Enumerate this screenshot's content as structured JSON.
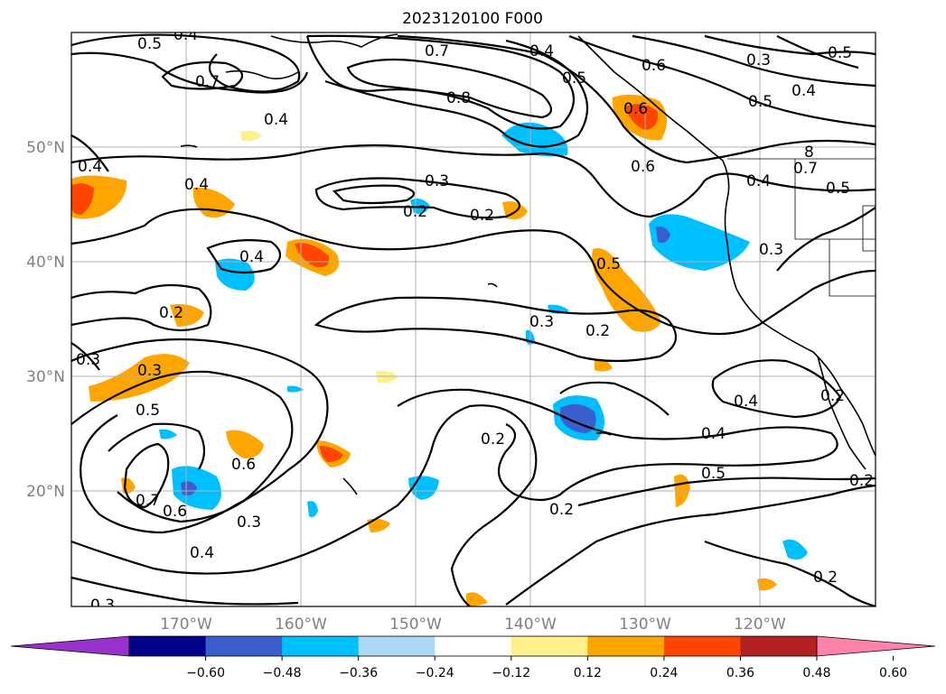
{
  "title": "2023120100 F000",
  "map": {
    "lon_labels": [
      "170°W",
      "160°W",
      "150°W",
      "140°W",
      "130°W",
      "120°W"
    ],
    "lat_labels": [
      "50°N",
      "40°N",
      "30°N",
      "20°N"
    ],
    "contour_labels": [
      "0.5",
      "0.4",
      "0.7",
      "0.4",
      "0.7",
      "0.8",
      "0.4",
      "0.5",
      "0.6",
      "0.3",
      "0.5",
      "0.4",
      "0.5",
      "0.4",
      "0.4",
      "0.3",
      "0.2",
      "0.2",
      "0.6",
      "0.6",
      "8",
      "0.7",
      "0.5",
      "0.4",
      "0.4",
      "0.3",
      "0.5",
      "0.3",
      "0.2",
      "0.2",
      "0.3",
      "0.3",
      "0.5",
      "0.4",
      "0.4",
      "0.5",
      "0.6",
      "0.2",
      "0.7",
      "0.6",
      "0.3",
      "0.4",
      "0.2",
      "0.2",
      "0.3",
      "0.2",
      "0.2"
    ]
  },
  "colorbar": {
    "ticks": [
      "−0.60",
      "−0.48",
      "−0.36",
      "−0.24",
      "−0.12",
      "0.12",
      "0.24",
      "0.36",
      "0.48",
      "0.60"
    ],
    "colors": {
      "under": "#9932cc",
      "bins": [
        "#00008b",
        "#3a5fcd",
        "#00bfff",
        "#add8f5",
        "#ffffff",
        "#fff08c",
        "#ffa500",
        "#ff4500",
        "#b22222"
      ],
      "over": "#ff82a9"
    }
  }
}
